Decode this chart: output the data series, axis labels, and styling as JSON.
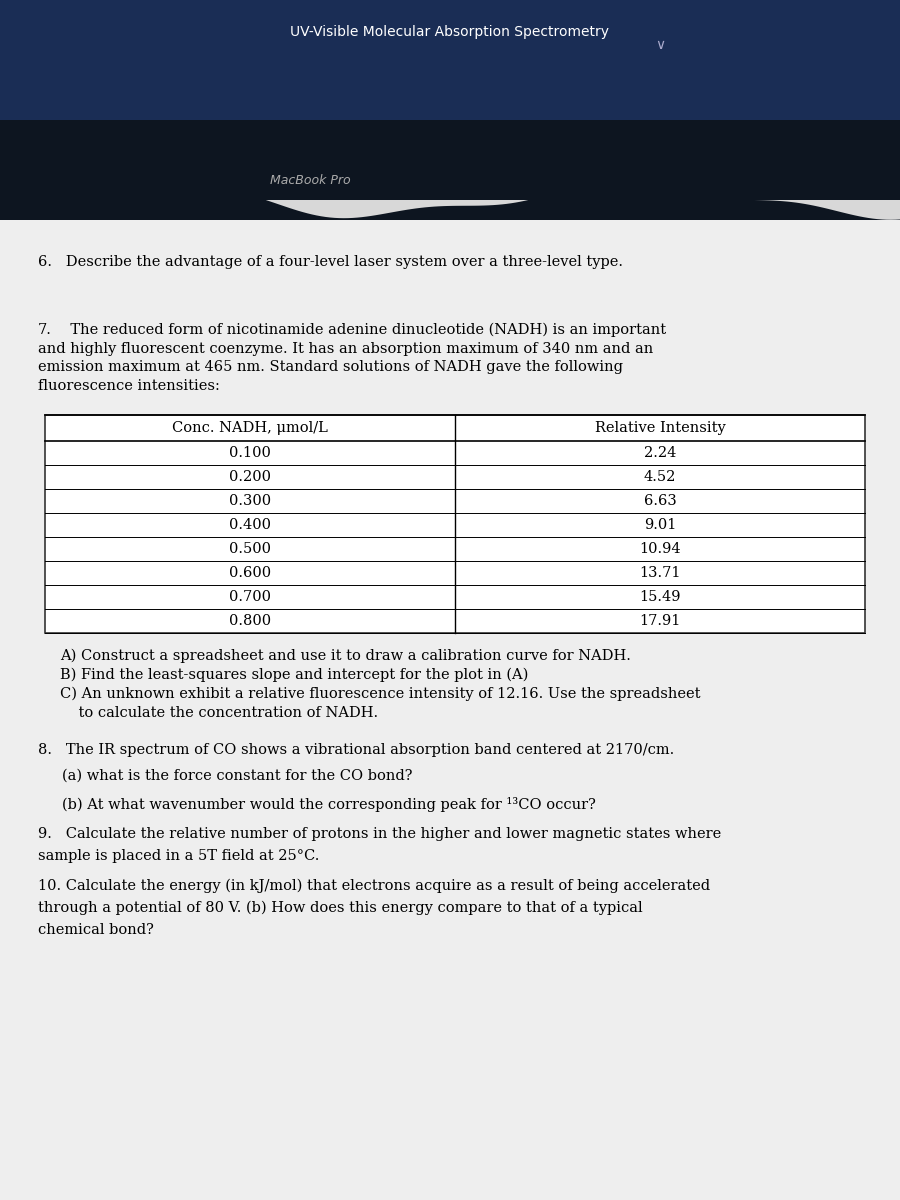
{
  "header_bg_color": "#1e3a6e",
  "header_text": "UV-Visible Molecular Absorption Spectrometry",
  "subheader_text": "MacBook Pro",
  "page_bg_color": "#d8d8d8",
  "content_bg_color": "#efefef",
  "dark_band_color": "#0d1a35",
  "q6_text": "6.   Describe the advantage of a four-level laser system over a three-level type.",
  "q7_intro_num": "7.",
  "q7_intro_body": "       The reduced form of nicotinamide adenine dinucleotide (NADH) is an important\nand highly fluorescent coenzyme. It has an absorption maximum of 340 nm and an\nemission maximum at 465 nm. Standard solutions of NADH gave the following\nfluorescence intensities:",
  "table_col1_header": "Conc. NADH, μmol/L",
  "table_col2_header": "Relative Intensity",
  "table_data": [
    [
      "0.100",
      "2.24"
    ],
    [
      "0.200",
      "4.52"
    ],
    [
      "0.300",
      "6.63"
    ],
    [
      "0.400",
      "9.01"
    ],
    [
      "0.500",
      "10.94"
    ],
    [
      "0.600",
      "13.71"
    ],
    [
      "0.700",
      "15.49"
    ],
    [
      "0.800",
      "17.91"
    ]
  ],
  "q7_parts": [
    "A) Construct a spreadsheet and use it to draw a calibration curve for NADH.",
    "B) Find the least-squares slope and intercept for the plot in (A)",
    "C) An unknown exhibit a relative fluorescence intensity of 12.16. Use the spreadsheet",
    "    to calculate the concentration of NADH."
  ],
  "q8_text": "8.   The IR spectrum of CO shows a vibrational absorption band centered at 2170/cm.",
  "q8a_text": "(a) what is the force constant for the CO bond?",
  "q8b_text": "(b) At what wavenumber would the corresponding peak for ¹³CO occur?",
  "q9_text": "9.   Calculate the relative number of protons in the higher and lower magnetic states where",
  "q9_text2": "sample is placed in a 5T field at 25°C.",
  "q10_text": "10. Calculate the energy (in kJ/mol) that electrons acquire as a result of being accelerated",
  "q10_text2": "through a potential of 80 V. (b) How does this energy compare to that of a typical",
  "q10_text3": "chemical bond?"
}
